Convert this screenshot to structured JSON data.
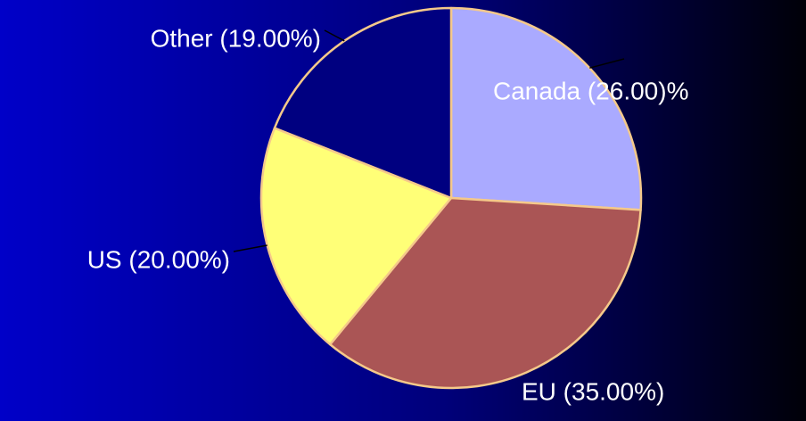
{
  "chart_data": {
    "type": "pie",
    "categories": [
      "Canada",
      "EU",
      "US",
      "Other"
    ],
    "values": [
      26,
      35,
      20,
      19
    ],
    "value_labels": [
      "Canada (26.00)%",
      "EU (35.00%)",
      "US (20.00%)",
      "Other (19.00%)"
    ],
    "colors": [
      "#aaaaff",
      "#aa5555",
      "#ffff77",
      "#000080"
    ]
  }
}
